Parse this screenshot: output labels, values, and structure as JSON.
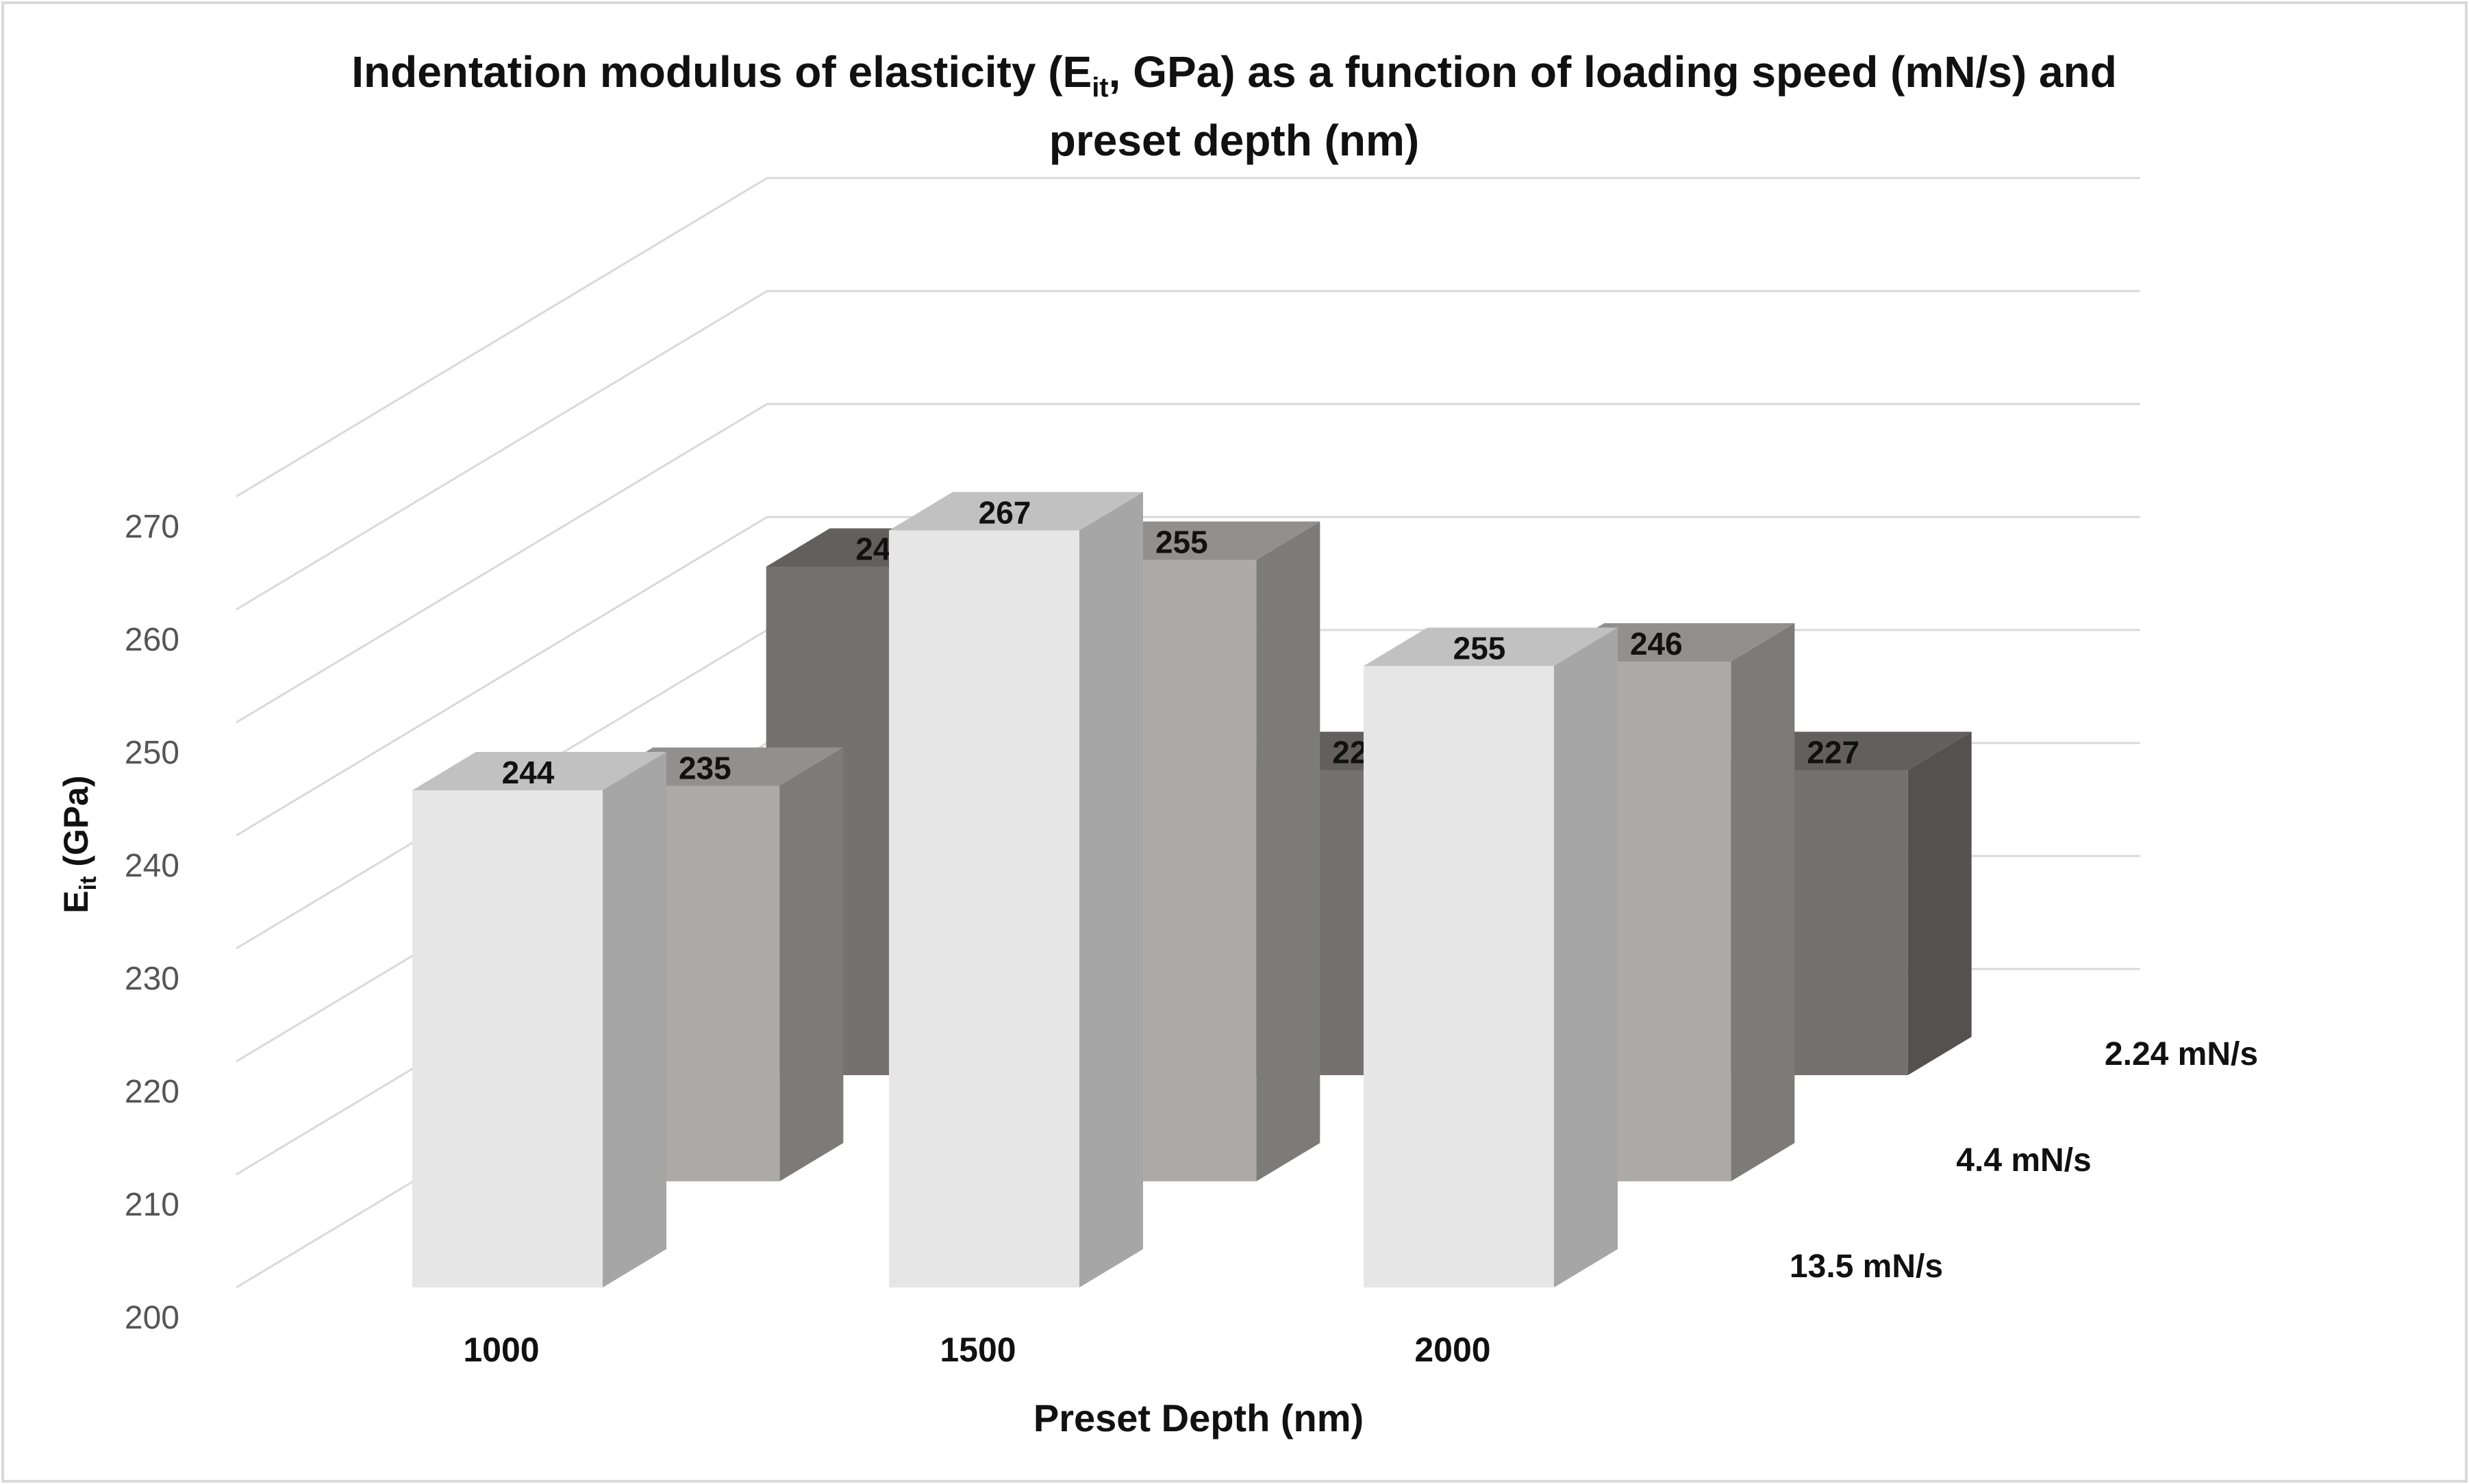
{
  "chart_data": {
    "type": "bar",
    "subtype": "3d-column",
    "title_parts": {
      "before": "Indentation modulus of elasticity (E",
      "sub": "it",
      "after": ", GPa) as a function of loading speed (mN/s) and",
      "line2": "preset depth (nm)"
    },
    "xlabel": "Preset Depth (nm)",
    "ylabel_parts": {
      "main": "E",
      "sub": "it",
      "rest": " (GPa)"
    },
    "categories": [
      "1000",
      "1500",
      "2000"
    ],
    "series": [
      {
        "name": "13.5 mN/s",
        "values": [
          244,
          267,
          255
        ],
        "color": "#e6e6e6"
      },
      {
        "name": "4.4 mN/s",
        "values": [
          235,
          255,
          246
        ],
        "color": "#aeaaaa"
      },
      {
        "name": "2.24 mN/s",
        "values": [
          245,
          227,
          227
        ],
        "color": "#767171"
      }
    ],
    "y_ticks": [
      "200",
      "210",
      "220",
      "230",
      "240",
      "250",
      "260",
      "270"
    ],
    "ylim": [
      200,
      270
    ],
    "grid": true,
    "legend": "depth-axis labels on right"
  }
}
